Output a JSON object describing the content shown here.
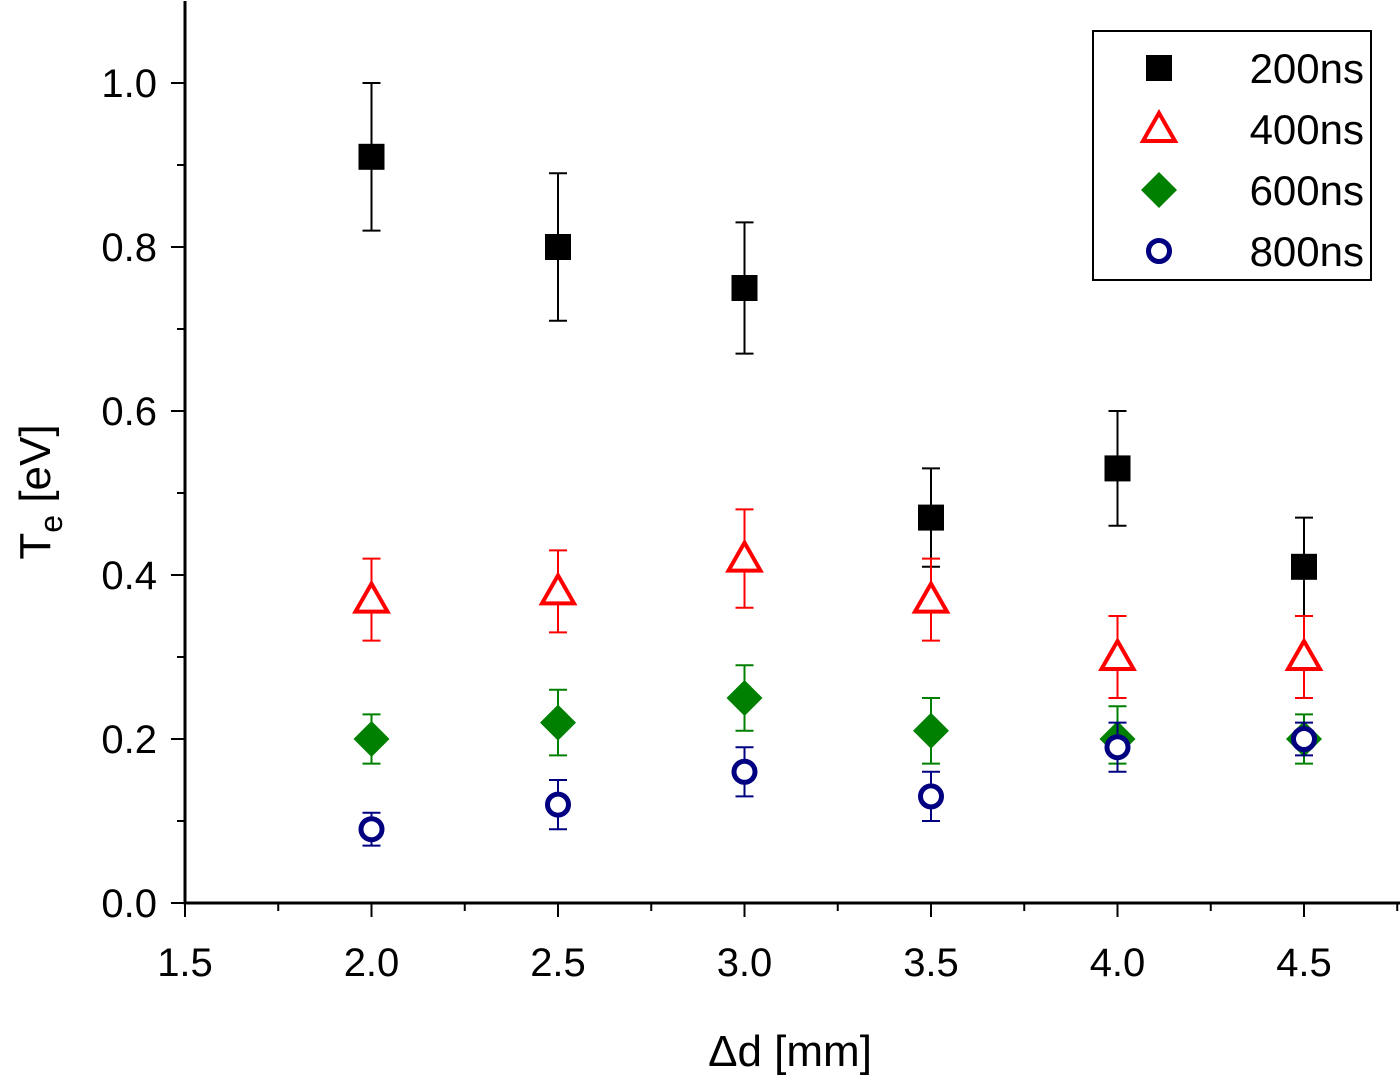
{
  "chart_data": {
    "type": "scatter",
    "xlabel": "Δd [mm]",
    "ylabel": {
      "main": "T",
      "subscript": "e",
      "suffix": " [eV]"
    },
    "xlim": [
      1.5,
      4.75
    ],
    "ylim": [
      0.0,
      1.1
    ],
    "x_ticks": [
      1.5,
      2.0,
      2.5,
      3.0,
      3.5,
      4.0,
      4.5
    ],
    "x_tick_labels": [
      "1.5",
      "2.0",
      "2.5",
      "3.0",
      "3.5",
      "4.0",
      "4.5"
    ],
    "y_ticks": [
      0.0,
      0.2,
      0.4,
      0.6,
      0.8,
      1.0
    ],
    "y_tick_labels": [
      "0.0",
      "0.2",
      "0.4",
      "0.6",
      "0.8",
      "1.0"
    ],
    "legend_position": "top-right",
    "x": [
      2.0,
      2.5,
      3.0,
      3.5,
      4.0,
      4.5
    ],
    "series": [
      {
        "name": "200ns",
        "marker": "filled-square",
        "color": "#000000",
        "values": [
          0.91,
          0.8,
          0.75,
          0.47,
          0.53,
          0.41
        ],
        "err_low": [
          0.82,
          0.71,
          0.67,
          0.41,
          0.46,
          0.35
        ],
        "err_high": [
          1.0,
          0.89,
          0.83,
          0.53,
          0.6,
          0.47
        ]
      },
      {
        "name": "400ns",
        "marker": "open-triangle",
        "color": "#ff0000",
        "values": [
          0.37,
          0.38,
          0.42,
          0.37,
          0.3,
          0.3
        ],
        "err_low": [
          0.32,
          0.33,
          0.36,
          0.32,
          0.25,
          0.25
        ],
        "err_high": [
          0.42,
          0.43,
          0.48,
          0.42,
          0.35,
          0.35
        ]
      },
      {
        "name": "600ns",
        "marker": "filled-diamond",
        "color": "#008000",
        "values": [
          0.2,
          0.22,
          0.25,
          0.21,
          0.2,
          0.2
        ],
        "err_low": [
          0.17,
          0.18,
          0.21,
          0.17,
          0.17,
          0.17
        ],
        "err_high": [
          0.23,
          0.26,
          0.29,
          0.25,
          0.24,
          0.23
        ]
      },
      {
        "name": "800ns",
        "marker": "open-circle",
        "color": "#000080",
        "values": [
          0.09,
          0.12,
          0.16,
          0.13,
          0.19,
          0.2
        ],
        "err_low": [
          0.07,
          0.09,
          0.13,
          0.1,
          0.16,
          0.18
        ],
        "err_high": [
          0.11,
          0.15,
          0.19,
          0.16,
          0.22,
          0.22
        ]
      }
    ]
  }
}
